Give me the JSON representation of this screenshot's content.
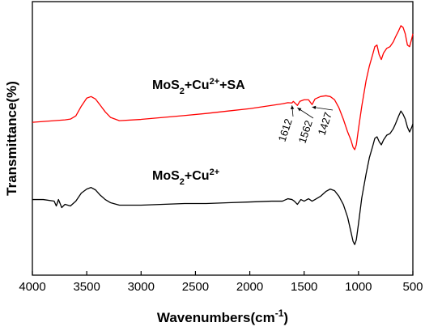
{
  "chart_data": {
    "type": "line",
    "xlabel_base": "Wavenumbers(cm",
    "xlabel_sup": "-1",
    "xlabel_end": ")",
    "ylabel": "Transmittance(%)",
    "xlim": [
      4000,
      500
    ],
    "x_reversed": true,
    "y_ticks_shown": false,
    "x_ticks": [
      4000,
      3500,
      3000,
      2500,
      2000,
      1500,
      1000,
      500
    ],
    "x_tick_labels": [
      "4000",
      "3500",
      "3000",
      "2500",
      "2000",
      "1500",
      "1000",
      "500"
    ],
    "grid": false,
    "legend": "none",
    "series": [
      {
        "label_parts": [
          {
            "t": "MoS",
            "k": "n"
          },
          {
            "t": "2",
            "k": "sub"
          },
          {
            "t": "+Cu",
            "k": "n"
          },
          {
            "t": "2+",
            "k": "sup"
          },
          {
            "t": "+SA",
            "k": "n"
          }
        ],
        "color": "#ff0000",
        "points": [
          [
            4000,
            0.4
          ],
          [
            3900,
            0.405
          ],
          [
            3800,
            0.41
          ],
          [
            3700,
            0.415
          ],
          [
            3650,
            0.42
          ],
          [
            3600,
            0.44
          ],
          [
            3550,
            0.5
          ],
          [
            3500,
            0.55
          ],
          [
            3460,
            0.56
          ],
          [
            3420,
            0.545
          ],
          [
            3380,
            0.51
          ],
          [
            3330,
            0.465
          ],
          [
            3280,
            0.43
          ],
          [
            3200,
            0.41
          ],
          [
            3000,
            0.418
          ],
          [
            2800,
            0.43
          ],
          [
            2600,
            0.442
          ],
          [
            2400,
            0.455
          ],
          [
            2200,
            0.47
          ],
          [
            2000,
            0.485
          ],
          [
            1800,
            0.505
          ],
          [
            1700,
            0.515
          ],
          [
            1650,
            0.522
          ],
          [
            1612,
            0.52
          ],
          [
            1600,
            0.53
          ],
          [
            1562,
            0.505
          ],
          [
            1540,
            0.53
          ],
          [
            1500,
            0.54
          ],
          [
            1460,
            0.54
          ],
          [
            1427,
            0.51
          ],
          [
            1400,
            0.545
          ],
          [
            1350,
            0.56
          ],
          [
            1300,
            0.565
          ],
          [
            1260,
            0.56
          ],
          [
            1220,
            0.54
          ],
          [
            1180,
            0.49
          ],
          [
            1140,
            0.42
          ],
          [
            1100,
            0.34
          ],
          [
            1070,
            0.29
          ],
          [
            1050,
            0.245
          ],
          [
            1035,
            0.23
          ],
          [
            1020,
            0.26
          ],
          [
            1000,
            0.36
          ],
          [
            970,
            0.5
          ],
          [
            930,
            0.66
          ],
          [
            900,
            0.75
          ],
          [
            870,
            0.82
          ],
          [
            850,
            0.87
          ],
          [
            830,
            0.88
          ],
          [
            810,
            0.82
          ],
          [
            790,
            0.79
          ],
          [
            770,
            0.83
          ],
          [
            740,
            0.86
          ],
          [
            710,
            0.87
          ],
          [
            680,
            0.9
          ],
          [
            660,
            0.93
          ],
          [
            630,
            0.97
          ],
          [
            610,
            1.0
          ],
          [
            590,
            0.99
          ],
          [
            570,
            0.95
          ],
          [
            550,
            0.88
          ],
          [
            530,
            0.87
          ],
          [
            510,
            0.92
          ],
          [
            500,
            0.95
          ]
        ]
      },
      {
        "label_parts": [
          {
            "t": "MoS",
            "k": "n"
          },
          {
            "t": "2",
            "k": "sub"
          },
          {
            "t": "+Cu",
            "k": "n"
          },
          {
            "t": "2+",
            "k": "sup"
          }
        ],
        "color": "#000000",
        "points": [
          [
            4000,
            -0.08
          ],
          [
            3900,
            -0.08
          ],
          [
            3800,
            -0.09
          ],
          [
            3780,
            -0.12
          ],
          [
            3760,
            -0.08
          ],
          [
            3730,
            -0.13
          ],
          [
            3700,
            -0.11
          ],
          [
            3650,
            -0.12
          ],
          [
            3600,
            -0.09
          ],
          [
            3550,
            -0.04
          ],
          [
            3500,
            -0.015
          ],
          [
            3460,
            -0.005
          ],
          [
            3420,
            -0.02
          ],
          [
            3380,
            -0.05
          ],
          [
            3330,
            -0.08
          ],
          [
            3280,
            -0.1
          ],
          [
            3200,
            -0.115
          ],
          [
            3000,
            -0.115
          ],
          [
            2800,
            -0.11
          ],
          [
            2600,
            -0.105
          ],
          [
            2400,
            -0.105
          ],
          [
            2200,
            -0.1
          ],
          [
            2000,
            -0.095
          ],
          [
            1800,
            -0.09
          ],
          [
            1700,
            -0.09
          ],
          [
            1650,
            -0.075
          ],
          [
            1612,
            -0.08
          ],
          [
            1590,
            -0.09
          ],
          [
            1562,
            -0.11
          ],
          [
            1530,
            -0.08
          ],
          [
            1500,
            -0.09
          ],
          [
            1460,
            -0.075
          ],
          [
            1427,
            -0.09
          ],
          [
            1400,
            -0.08
          ],
          [
            1350,
            -0.06
          ],
          [
            1300,
            -0.03
          ],
          [
            1260,
            -0.015
          ],
          [
            1220,
            -0.025
          ],
          [
            1180,
            -0.06
          ],
          [
            1140,
            -0.11
          ],
          [
            1100,
            -0.19
          ],
          [
            1070,
            -0.28
          ],
          [
            1050,
            -0.34
          ],
          [
            1035,
            -0.36
          ],
          [
            1020,
            -0.33
          ],
          [
            1000,
            -0.23
          ],
          [
            970,
            -0.07
          ],
          [
            930,
            0.08
          ],
          [
            900,
            0.18
          ],
          [
            870,
            0.25
          ],
          [
            850,
            0.3
          ],
          [
            830,
            0.31
          ],
          [
            810,
            0.28
          ],
          [
            790,
            0.26
          ],
          [
            770,
            0.29
          ],
          [
            740,
            0.32
          ],
          [
            710,
            0.33
          ],
          [
            680,
            0.36
          ],
          [
            660,
            0.39
          ],
          [
            630,
            0.44
          ],
          [
            610,
            0.47
          ],
          [
            590,
            0.45
          ],
          [
            570,
            0.42
          ],
          [
            550,
            0.37
          ],
          [
            530,
            0.34
          ],
          [
            510,
            0.37
          ],
          [
            500,
            0.39
          ]
        ]
      }
    ],
    "annotations": [
      {
        "label": "1612",
        "x": 1612,
        "series": 0
      },
      {
        "label": "1562",
        "x": 1562,
        "series": 0
      },
      {
        "label": "1427",
        "x": 1427,
        "series": 0
      }
    ]
  }
}
